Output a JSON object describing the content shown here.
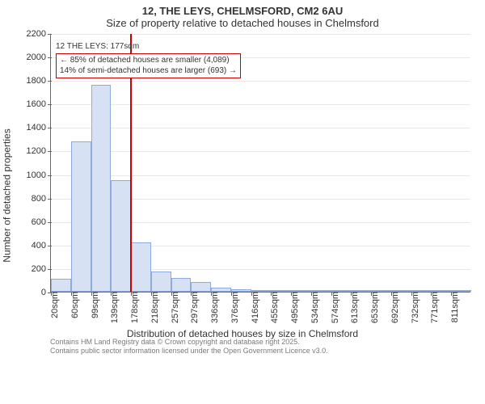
{
  "title_main": "12, THE LEYS, CHELMSFORD, CM2 6AU",
  "title_sub": "Size of property relative to detached houses in Chelmsford",
  "ylabel": "Number of detached properties",
  "xlabel": "Distribution of detached houses by size in Chelmsford",
  "chart": {
    "type": "histogram",
    "background_color": "#ffffff",
    "bar_fill": "#d6e2f3",
    "bar_border": "#8faadc",
    "axis_color": "#666666",
    "ref_line_color": "#cc0000",
    "annot_border": "#cc0000",
    "ylim": [
      0,
      2200
    ],
    "ytick_step": 200,
    "yticks": [
      0,
      200,
      400,
      600,
      800,
      1000,
      1200,
      1400,
      1600,
      1800,
      2000,
      2200
    ],
    "x_start": 20,
    "x_step": 39.5,
    "x_bins": 21,
    "xticks": [
      "20sqm",
      "60sqm",
      "99sqm",
      "139sqm",
      "178sqm",
      "218sqm",
      "257sqm",
      "297sqm",
      "336sqm",
      "376sqm",
      "416sqm",
      "455sqm",
      "495sqm",
      "534sqm",
      "574sqm",
      "613sqm",
      "653sqm",
      "692sqm",
      "732sqm",
      "771sqm",
      "811sqm"
    ],
    "bar_values": [
      110,
      1280,
      1760,
      950,
      420,
      170,
      120,
      80,
      35,
      20,
      10,
      8,
      5,
      4,
      3,
      3,
      2,
      2,
      2,
      2,
      1
    ],
    "reference": {
      "value_sqm": 177,
      "label": "12 THE LEYS: 177sqm",
      "line1": "← 85% of detached houses are smaller (4,089)",
      "line2": "14% of semi-detached houses are larger (693) →"
    }
  },
  "footer1": "Contains HM Land Registry data © Crown copyright and database right 2025.",
  "footer2": "Contains public sector information licensed under the Open Government Licence v3.0."
}
